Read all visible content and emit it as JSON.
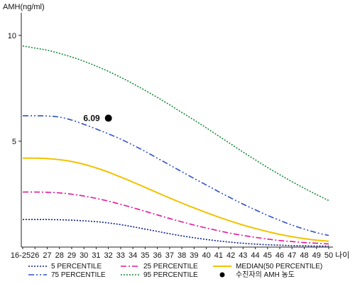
{
  "chart_data": {
    "type": "line",
    "ylabel": "AMH(ng/ml)",
    "xlabel": "나이",
    "ylim": [
      0,
      11
    ],
    "yticks": [
      {
        "value": 5,
        "label": "5"
      },
      {
        "value": 10,
        "label": "10"
      }
    ],
    "categories": [
      "16-25",
      "26",
      "27",
      "28",
      "29",
      "30",
      "31",
      "32",
      "33",
      "34",
      "35",
      "36",
      "37",
      "38",
      "39",
      "40",
      "41",
      "42",
      "43",
      "44",
      "45",
      "46",
      "47",
      "48",
      "49",
      "50"
    ],
    "series": [
      {
        "name": "5 PERCENTILE",
        "color": "#0b1f8a",
        "style": "dotted",
        "values": [
          1.3,
          1.3,
          1.3,
          1.29,
          1.27,
          1.24,
          1.2,
          1.14,
          1.06,
          0.96,
          0.85,
          0.74,
          0.63,
          0.53,
          0.44,
          0.36,
          0.29,
          0.23,
          0.18,
          0.14,
          0.11,
          0.09,
          0.07,
          0.06,
          0.05,
          0.05
        ]
      },
      {
        "name": "25 PERCENTILE",
        "color": "#e0189a",
        "style": "dashdot",
        "values": [
          2.6,
          2.6,
          2.59,
          2.56,
          2.5,
          2.41,
          2.3,
          2.17,
          2.02,
          1.86,
          1.69,
          1.52,
          1.35,
          1.19,
          1.04,
          0.9,
          0.77,
          0.65,
          0.55,
          0.46,
          0.38,
          0.31,
          0.26,
          0.21,
          0.18,
          0.15
        ]
      },
      {
        "name": "MEDIAN(50 PERCENTILE)",
        "color": "#f2c200",
        "style": "solid",
        "values": [
          4.2,
          4.2,
          4.18,
          4.13,
          4.04,
          3.91,
          3.74,
          3.54,
          3.31,
          3.07,
          2.82,
          2.57,
          2.32,
          2.08,
          1.85,
          1.63,
          1.42,
          1.22,
          1.04,
          0.88,
          0.73,
          0.6,
          0.49,
          0.4,
          0.33,
          0.28
        ]
      },
      {
        "name": "75 PERCENTILE",
        "color": "#3050c8",
        "style": "dashdotdot",
        "values": [
          6.2,
          6.2,
          6.19,
          6.14,
          6.0,
          5.8,
          5.58,
          5.35,
          5.1,
          4.82,
          4.52,
          4.2,
          3.88,
          3.56,
          3.24,
          2.93,
          2.62,
          2.32,
          2.03,
          1.76,
          1.5,
          1.26,
          1.04,
          0.85,
          0.68,
          0.55
        ]
      },
      {
        "name": "95 PERCENTILE",
        "color": "#1a8a3a",
        "style": "dotted",
        "values": [
          9.5,
          9.4,
          9.3,
          9.15,
          8.98,
          8.78,
          8.55,
          8.3,
          8.02,
          7.72,
          7.4,
          7.07,
          6.72,
          6.36,
          6.0,
          5.63,
          5.25,
          4.87,
          4.49,
          4.12,
          3.76,
          3.42,
          3.09,
          2.78,
          2.48,
          2.2
        ]
      }
    ],
    "marker": {
      "name": "수진자의 AMH 농도",
      "x": "32",
      "y": 6.09,
      "label": "6.09",
      "color": "#000000"
    },
    "legend_position": "bottom",
    "grid": false
  }
}
